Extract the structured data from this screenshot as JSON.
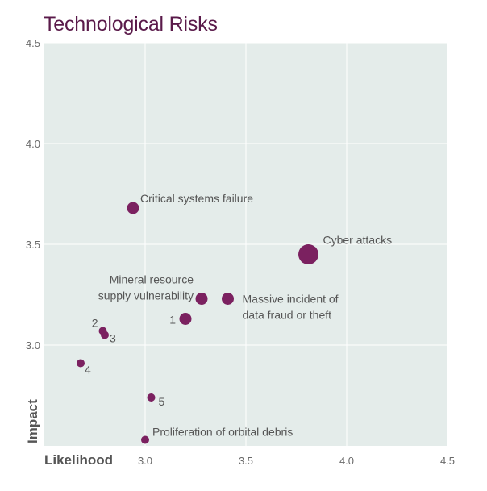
{
  "chart_data": {
    "type": "scatter",
    "title": "Technological Risks",
    "xlabel": "Likelihood",
    "ylabel": "Impact",
    "xlim": [
      2.5,
      4.5
    ],
    "ylim": [
      2.5,
      4.5
    ],
    "xticks": [
      "3.0",
      "3.5",
      "4.0",
      "4.5"
    ],
    "yticks": [
      "3.0",
      "3.5",
      "4.0",
      "4.5"
    ],
    "grid": true,
    "colors": {
      "point": "#7b2160",
      "plot_bg": "#e4ecea",
      "grid": "#ffffff",
      "title": "#5a1a4a"
    },
    "points": [
      {
        "label": "Cyber attacks",
        "x": 3.81,
        "y": 3.45,
        "size": "large"
      },
      {
        "label": "Critical systems failure",
        "x": 2.94,
        "y": 3.68,
        "size": "medium"
      },
      {
        "label": "Massive incident of data fraud or theft",
        "x": 3.41,
        "y": 3.23,
        "size": "medium"
      },
      {
        "label": "Mineral resource supply vulnerability",
        "x": 3.28,
        "y": 3.23,
        "size": "medium"
      },
      {
        "label": "1",
        "x": 3.2,
        "y": 3.13,
        "size": "medium"
      },
      {
        "label": "2",
        "x": 2.79,
        "y": 3.07,
        "size": "small"
      },
      {
        "label": "3",
        "x": 2.8,
        "y": 3.05,
        "size": "small"
      },
      {
        "label": "4",
        "x": 2.68,
        "y": 2.91,
        "size": "small"
      },
      {
        "label": "5",
        "x": 3.03,
        "y": 2.74,
        "size": "small"
      },
      {
        "label": "Proliferation of orbital debris",
        "x": 3.0,
        "y": 2.53,
        "size": "small"
      }
    ]
  }
}
